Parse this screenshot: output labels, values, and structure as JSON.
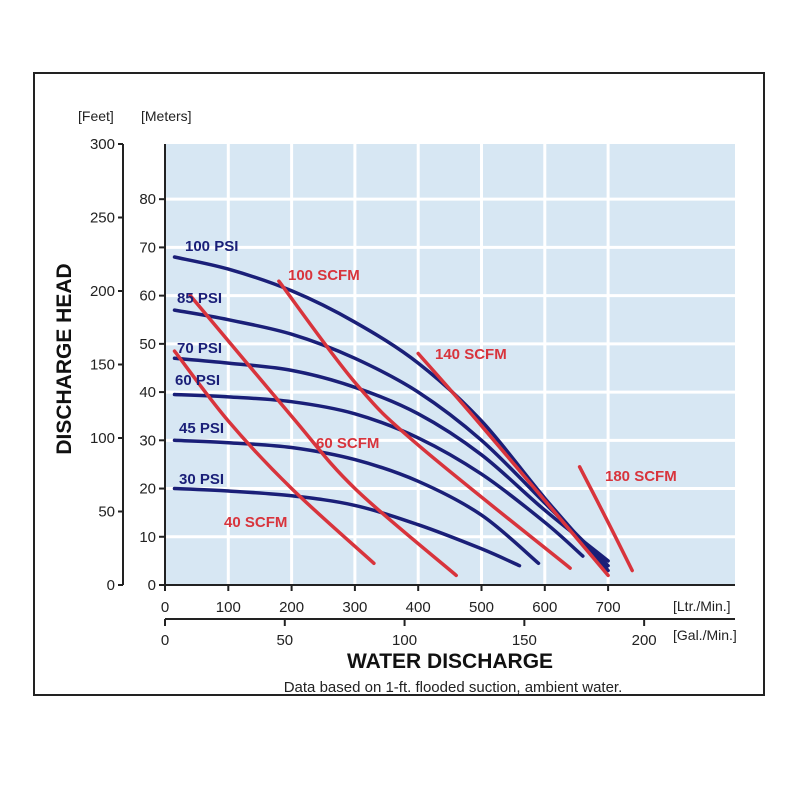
{
  "chart_data": {
    "type": "line",
    "title": "",
    "xlabel": "WATER DISCHARGE",
    "ylabel": "DISCHARGE HEAD",
    "note": "Data based on 1-ft. flooded suction, ambient water.",
    "grid": true,
    "x_axis_primary": {
      "unit": "[Ltr./Min.]",
      "range": [
        0,
        900
      ],
      "ticks": [
        0,
        100,
        200,
        300,
        400,
        500,
        600,
        700
      ]
    },
    "x_axis_secondary": {
      "unit": "[Gal./Min.]",
      "range": [
        0,
        237.8
      ],
      "ticks": [
        0,
        50,
        100,
        150,
        200
      ]
    },
    "y_axis_feet": {
      "unit": "[Feet]",
      "range": [
        0,
        300
      ],
      "ticks": [
        0,
        50,
        100,
        150,
        200,
        250,
        300
      ]
    },
    "y_axis_meters": {
      "unit": "[Meters]",
      "range": [
        0,
        91.44
      ],
      "ticks": [
        0,
        10,
        20,
        30,
        40,
        50,
        60,
        70,
        80
      ]
    },
    "colors": {
      "pressure": "#1a1f78",
      "air": "#d8343c",
      "plot_bg": "#d7e7f3",
      "grid": "#ffffff"
    },
    "pressure_series": [
      {
        "name": "100 PSI",
        "points": [
          [
            15,
            68
          ],
          [
            100,
            65.5
          ],
          [
            200,
            61
          ],
          [
            300,
            54.5
          ],
          [
            400,
            46
          ],
          [
            500,
            34
          ],
          [
            600,
            18
          ],
          [
            700,
            3
          ]
        ]
      },
      {
        "name": "85 PSI",
        "points": [
          [
            15,
            57
          ],
          [
            100,
            55
          ],
          [
            200,
            52
          ],
          [
            300,
            47
          ],
          [
            400,
            40
          ],
          [
            500,
            30
          ],
          [
            600,
            17
          ],
          [
            700,
            4
          ]
        ]
      },
      {
        "name": "70 PSI",
        "points": [
          [
            15,
            47
          ],
          [
            100,
            46
          ],
          [
            200,
            44.5
          ],
          [
            300,
            41
          ],
          [
            400,
            35.5
          ],
          [
            500,
            27
          ],
          [
            600,
            15.5
          ],
          [
            700,
            5
          ]
        ]
      },
      {
        "name": "60 PSI",
        "points": [
          [
            15,
            39.5
          ],
          [
            100,
            39
          ],
          [
            200,
            38
          ],
          [
            300,
            35.5
          ],
          [
            400,
            30.5
          ],
          [
            500,
            23
          ],
          [
            600,
            13
          ],
          [
            660,
            6
          ]
        ]
      },
      {
        "name": "45 PSI",
        "points": [
          [
            15,
            30
          ],
          [
            100,
            29.5
          ],
          [
            200,
            28.5
          ],
          [
            300,
            26
          ],
          [
            400,
            21.5
          ],
          [
            500,
            14.5
          ],
          [
            590,
            4.5
          ]
        ]
      },
      {
        "name": "30 PSI",
        "points": [
          [
            15,
            20
          ],
          [
            100,
            19.5
          ],
          [
            200,
            18.5
          ],
          [
            300,
            16.5
          ],
          [
            400,
            12.5
          ],
          [
            500,
            7.5
          ],
          [
            560,
            4
          ]
        ]
      }
    ],
    "air_series": [
      {
        "name": "40 SCFM",
        "points": [
          [
            15,
            48.5
          ],
          [
            100,
            34
          ],
          [
            200,
            20
          ],
          [
            330,
            4.5
          ]
        ]
      },
      {
        "name": "60 SCFM",
        "points": [
          [
            40,
            60
          ],
          [
            200,
            35
          ],
          [
            300,
            20
          ],
          [
            460,
            2
          ]
        ]
      },
      {
        "name": "100 SCFM",
        "points": [
          [
            180,
            63
          ],
          [
            300,
            42
          ],
          [
            400,
            29
          ],
          [
            640,
            3.5
          ]
        ]
      },
      {
        "name": "140 SCFM",
        "points": [
          [
            400,
            48
          ],
          [
            500,
            33
          ],
          [
            700,
            2
          ]
        ]
      },
      {
        "name": "180 SCFM",
        "points": [
          [
            655,
            24.5
          ],
          [
            700,
            13
          ],
          [
            738,
            3
          ]
        ]
      }
    ]
  }
}
